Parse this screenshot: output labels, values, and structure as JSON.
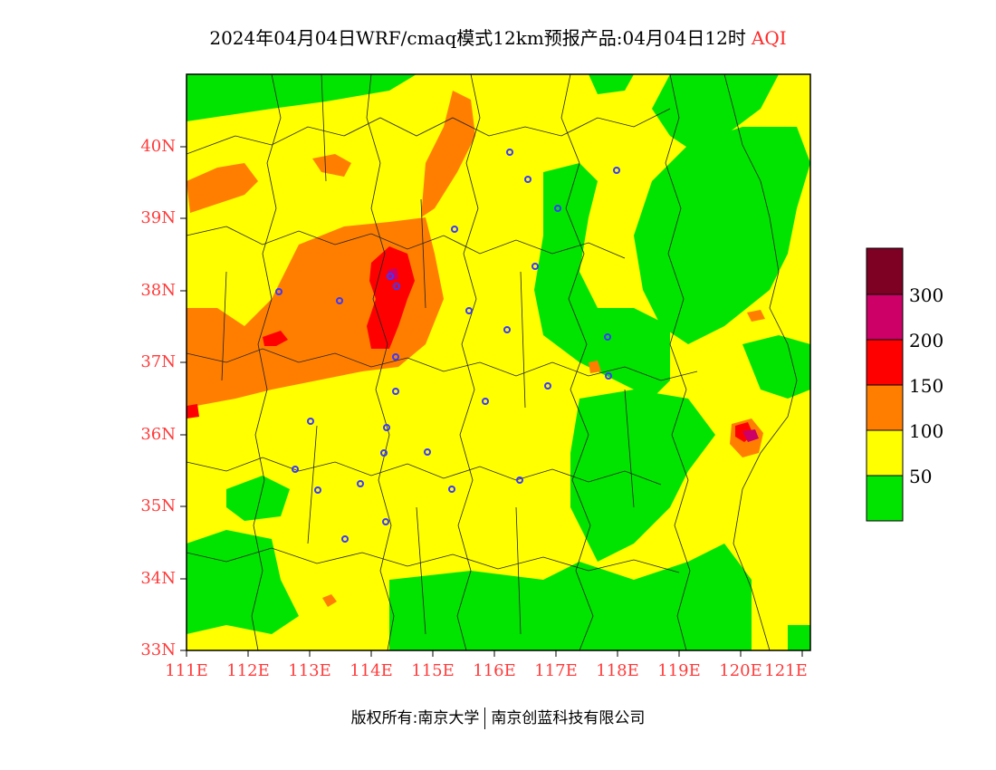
{
  "title": {
    "text": "2024年04月04日WRF/cmaq模式12km预报产品:04月04日12时",
    "variable": "AQI"
  },
  "map": {
    "y_ticks": [
      "40N",
      "39N",
      "38N",
      "37N",
      "36N",
      "35N",
      "34N",
      "33N"
    ],
    "x_ticks": [
      "111E",
      "112E",
      "113E",
      "114E",
      "115E",
      "116E",
      "117E",
      "118E",
      "119E",
      "120E",
      "121E"
    ],
    "colors": {
      "green": "#00e400",
      "yellow": "#ffff00",
      "orange": "#ff7e00",
      "red": "#ff0000",
      "magenta": "#cc0066",
      "maroon": "#7e0023",
      "station": "#3a3aff",
      "border": "#222222"
    }
  },
  "legend": {
    "items": [
      {
        "label": "300",
        "color": "#7e0023"
      },
      {
        "label": "200",
        "color": "#cc0066"
      },
      {
        "label": "150",
        "color": "#ff0000"
      },
      {
        "label": "100",
        "color": "#ff7e00"
      },
      {
        "label": "50",
        "color": "#ffff00"
      },
      {
        "label": "",
        "color": "#00e400"
      }
    ],
    "tick_labels": [
      "300",
      "200",
      "150",
      "100",
      "50"
    ]
  },
  "footer": {
    "copyright": "版权所有:南京大学",
    "company": "南京创蓝科技有限公司"
  }
}
